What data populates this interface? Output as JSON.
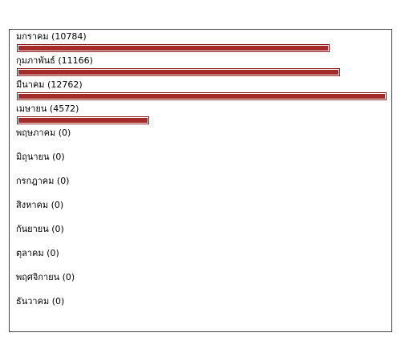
{
  "colors": {
    "bar_fill": "#a52a2a",
    "bar_border": "#8b1a1a",
    "panel_border": "#444444"
  },
  "max_count": 12762,
  "months": [
    {
      "name": "มกราคม",
      "count": 10784,
      "label": "มกราคม (10784)"
    },
    {
      "name": "กุมภาพันธ์",
      "count": 11166,
      "label": "กุมภาพันธ์ (11166)"
    },
    {
      "name": "มีนาคม",
      "count": 12762,
      "label": "มีนาคม (12762)"
    },
    {
      "name": "เมษายน",
      "count": 4572,
      "label": "เมษายน (4572)"
    },
    {
      "name": "พฤษภาคม",
      "count": 0,
      "label": "พฤษภาคม (0)"
    },
    {
      "name": "มิถุนายน",
      "count": 0,
      "label": "มิถุนายน (0)"
    },
    {
      "name": "กรกฎาคม",
      "count": 0,
      "label": "กรกฎาคม (0)"
    },
    {
      "name": "สิงหาคม",
      "count": 0,
      "label": "สิงหาคม (0)"
    },
    {
      "name": "กันยายน",
      "count": 0,
      "label": "กันยายน (0)"
    },
    {
      "name": "ตุลาคม",
      "count": 0,
      "label": "ตุลาคม (0)"
    },
    {
      "name": "พฤศจิกายน",
      "count": 0,
      "label": "พฤศจิกายน (0)"
    },
    {
      "name": "ธันวาคม",
      "count": 0,
      "label": "ธันวาคม (0)"
    }
  ]
}
